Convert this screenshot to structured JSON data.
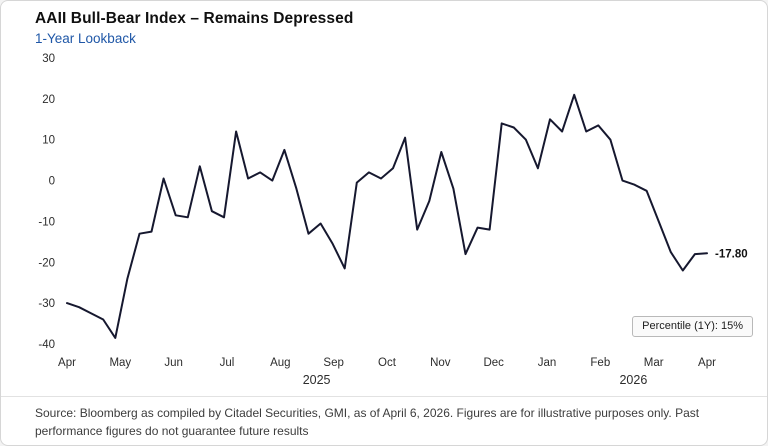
{
  "header": {
    "title": "AAII Bull-Bear Index – Remains Depressed",
    "subtitle": "1-Year Lookback"
  },
  "chart_data": {
    "type": "line",
    "title": "AAII Bull-Bear Index – Remains Depressed",
    "subtitle": "1-Year Lookback",
    "x_tick_labels": [
      "Apr",
      "May",
      "Jun",
      "Jul",
      "Aug",
      "Sep",
      "Oct",
      "Nov",
      "Dec",
      "Jan",
      "Feb",
      "Mar",
      "Apr"
    ],
    "year_labels": [
      {
        "label": "2025",
        "pos": 0.39
      },
      {
        "label": "2026",
        "pos": 0.885
      }
    ],
    "y_ticks": [
      30,
      20,
      10,
      0,
      -10,
      -20,
      -30,
      -40
    ],
    "ylim": [
      -40,
      30
    ],
    "xlabel": "",
    "ylabel": "",
    "grid": false,
    "legend": false,
    "values": [
      -30,
      -31,
      -32.5,
      -34,
      -38.5,
      -24,
      -13,
      -12.5,
      0.5,
      -8.5,
      -9,
      3.5,
      -7.5,
      -9,
      12,
      0.5,
      2,
      0,
      7.5,
      -2,
      -13,
      -10.5,
      -15.5,
      -21.5,
      -0.5,
      2,
      0.5,
      3,
      10.5,
      -12,
      -5,
      7,
      -2,
      -18,
      -11.5,
      -12,
      14,
      13,
      10,
      3,
      15,
      12,
      21,
      12,
      13.5,
      10,
      0,
      -1,
      -2.5,
      -10,
      -17.5,
      -22,
      -18,
      -17.8
    ],
    "last_value": -17.8,
    "last_value_label": "-17.80",
    "line_color": "#16182f"
  },
  "annotations": {
    "percentile_box": "Percentile (1Y): 15%"
  },
  "footer": {
    "source": "Source: Bloomberg as compiled by Citadel Securities, GMI, as of April 6, 2026. Figures are for illustrative purposes only. Past performance figures do not guarantee future results"
  }
}
